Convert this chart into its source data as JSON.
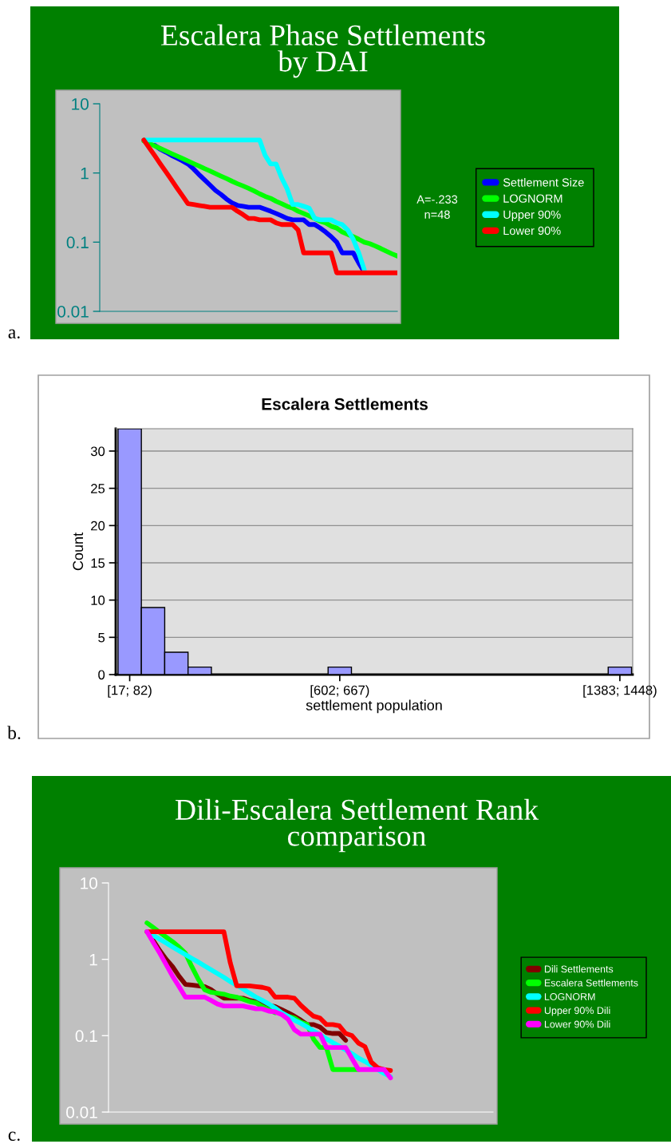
{
  "chart_data": [
    {
      "type": "line",
      "title": "Escalera Phase Settlements\nby DAI",
      "log": "y",
      "ylim": [
        0.01,
        10
      ],
      "yticks": [
        0.01,
        0.1,
        1,
        10
      ],
      "tick_labels": "y",
      "legend": "right",
      "categories": [
        null,
        null,
        null,
        null,
        null,
        null,
        null,
        null,
        null,
        null,
        null,
        null,
        null,
        null,
        null,
        null,
        null,
        null,
        null,
        null,
        null,
        null,
        null,
        null,
        null,
        null,
        null,
        null,
        null,
        null,
        null,
        null,
        null,
        null,
        null,
        null,
        null,
        null,
        null,
        null,
        null,
        null,
        null,
        null,
        null,
        null,
        null,
        null,
        null,
        null,
        null,
        null,
        null,
        null,
        null
      ],
      "series": [
        {
          "name": "Settlement Size",
          "color": "#0000ff",
          "values": [
            null,
            null,
            null,
            null,
            null,
            null,
            null,
            null,
            null,
            null,
            2.5,
            2.2,
            2.0,
            1.8,
            1.65,
            1.5,
            1.35,
            1.15,
            0.95,
            0.8,
            0.67,
            0.56,
            0.49,
            0.42,
            0.37,
            0.34,
            0.33,
            0.32,
            0.32,
            0.32,
            0.3,
            0.28,
            0.26,
            0.24,
            0.22,
            0.21,
            0.21,
            0.21,
            0.18,
            0.18,
            0.16,
            0.14,
            0.12,
            0.1,
            0.07,
            0.07,
            0.07,
            0.05,
            0.037,
            null,
            null,
            null,
            null,
            null,
            null
          ]
        },
        {
          "name": "LOGNORM",
          "color": "#00ff00",
          "values": [
            null,
            null,
            null,
            null,
            null,
            null,
            null,
            null,
            2.9,
            2.67,
            2.45,
            2.26,
            2.08,
            1.91,
            1.76,
            1.62,
            1.49,
            1.37,
            1.26,
            1.16,
            1.07,
            0.98,
            0.9,
            0.83,
            0.76,
            0.7,
            0.65,
            0.6,
            0.55,
            0.5,
            0.46,
            0.43,
            0.39,
            0.36,
            0.33,
            0.31,
            0.28,
            0.26,
            0.24,
            0.22,
            0.2,
            0.19,
            0.17,
            0.16,
            0.14,
            0.13,
            0.12,
            0.11,
            0.1,
            0.095,
            0.088,
            0.081,
            0.074,
            0.068,
            0.063
          ]
        },
        {
          "name": "Upper 90%",
          "color": "#00ffff",
          "values": [
            null,
            null,
            null,
            null,
            null,
            null,
            null,
            null,
            3,
            3,
            3,
            3,
            3,
            3,
            3,
            3,
            3,
            3,
            3,
            3,
            3,
            3,
            3,
            3,
            3,
            3,
            3,
            3,
            3,
            3,
            1.8,
            1.35,
            1.35,
            0.85,
            0.59,
            0.35,
            0.35,
            0.33,
            0.31,
            0.22,
            0.21,
            0.21,
            0.21,
            0.19,
            0.18,
            0.15,
            0.11,
            0.07,
            0.04,
            null,
            null,
            null,
            null,
            null,
            null
          ]
        },
        {
          "name": "Lower 90%",
          "color": "#ff0000",
          "values": [
            null,
            null,
            null,
            null,
            null,
            null,
            null,
            null,
            3,
            2.3,
            1.77,
            1.35,
            1.04,
            0.8,
            0.61,
            0.47,
            0.36,
            0.35,
            0.34,
            0.33,
            0.32,
            0.32,
            0.32,
            0.32,
            0.32,
            0.28,
            0.25,
            0.22,
            0.22,
            0.21,
            0.21,
            0.21,
            0.19,
            0.18,
            0.18,
            0.18,
            0.15,
            0.07,
            0.07,
            0.07,
            0.07,
            0.07,
            0.07,
            0.036,
            0.036,
            0.036,
            0.036,
            0.036,
            0.036,
            0.036,
            0.036,
            0.036,
            0.036,
            0.036,
            0.036
          ]
        }
      ],
      "annotations": [
        "A=-.233",
        "n=48",
        "a."
      ]
    },
    {
      "type": "bar",
      "title": "Escalera Settlements",
      "xlabel": "settlement population",
      "ylabel": "Count",
      "ylim": [
        0,
        33
      ],
      "yticks": [
        0,
        5,
        10,
        15,
        20,
        25,
        30
      ],
      "grid": "y",
      "categories": [
        "[17; 82)",
        null,
        null,
        null,
        null,
        null,
        null,
        null,
        null,
        "[602; 667)",
        null,
        null,
        null,
        null,
        null,
        null,
        null,
        null,
        null,
        null,
        null,
        "[1383; 1448)"
      ],
      "color": "#9999ff",
      "values": [
        33,
        9,
        3,
        1,
        0,
        0,
        0,
        0,
        0,
        1,
        0,
        0,
        0,
        0,
        0,
        0,
        0,
        0,
        0,
        0,
        0,
        1
      ],
      "annotations": [
        "b."
      ]
    },
    {
      "type": "line",
      "title": "Dili-Escalera Settlement Rank\ncomparison",
      "log": "y",
      "ylim": [
        0.01,
        10
      ],
      "yticks": [
        0.01,
        0.1,
        1,
        10
      ],
      "tick_labels": "y",
      "legend": "right",
      "categories": [
        null,
        null,
        null,
        null,
        null,
        null,
        null,
        null,
        null,
        null,
        null,
        null,
        null,
        null,
        null,
        null,
        null,
        null,
        null,
        null,
        null,
        null,
        null,
        null,
        null,
        null,
        null,
        null,
        null,
        null,
        null,
        null,
        null,
        null,
        null,
        null,
        null,
        null,
        null,
        null,
        null,
        null,
        null,
        null,
        null,
        null,
        null,
        null,
        null,
        null,
        null,
        null,
        null,
        null,
        null,
        null,
        null,
        null,
        null,
        null,
        null
      ],
      "series": [
        {
          "name": "Dili Settlements",
          "color": "#800000",
          "values": [
            null,
            null,
            null,
            null,
            null,
            null,
            null,
            1.75,
            1.3,
            1.0,
            0.8,
            0.6,
            0.47,
            0.46,
            0.45,
            0.44,
            0.4,
            0.35,
            0.31,
            0.31,
            0.31,
            0.31,
            0.29,
            0.28,
            0.26,
            0.25,
            0.24,
            0.22,
            0.2,
            0.18,
            0.16,
            0.14,
            0.14,
            0.13,
            0.11,
            0.107,
            0.107,
            0.087,
            null,
            null,
            null,
            null,
            null,
            null,
            null,
            null,
            null,
            null,
            null,
            null,
            null,
            null,
            null,
            null,
            null,
            null,
            null,
            null,
            null,
            null,
            null
          ]
        },
        {
          "name": "Escalera Settlements",
          "color": "#00ff00",
          "values": [
            null,
            null,
            null,
            null,
            null,
            null,
            3.0,
            2.6,
            2.25,
            1.95,
            1.7,
            1.45,
            1.2,
            0.8,
            0.55,
            0.4,
            0.37,
            0.36,
            0.35,
            0.33,
            0.32,
            0.3,
            0.28,
            0.27,
            0.24,
            0.22,
            0.2,
            null,
            0.18,
            0.17,
            0.15,
            0.14,
            0.09,
            0.07,
            0.07,
            0.036,
            0.036,
            0.036,
            0.036,
            0.036,
            null,
            null,
            null,
            null,
            null,
            null,
            null,
            null,
            null,
            null,
            null,
            null,
            null,
            null,
            null,
            null,
            null,
            null,
            null,
            null,
            null
          ]
        },
        {
          "name": "LOGNORM",
          "color": "#00ffff",
          "values": [
            null,
            null,
            null,
            null,
            null,
            null,
            2.3,
            2.05,
            1.83,
            1.63,
            1.45,
            1.29,
            1.15,
            1.03,
            0.92,
            0.82,
            0.73,
            0.65,
            0.58,
            0.51,
            0.46,
            0.41,
            0.36,
            0.32,
            0.29,
            0.26,
            0.23,
            0.2,
            0.18,
            0.16,
            0.145,
            0.13,
            0.115,
            0.103,
            0.091,
            0.081,
            0.073,
            0.065,
            0.058,
            0.051,
            0.046,
            0.041,
            0.036,
            0.032,
            0.029,
            null,
            null,
            null,
            null,
            null,
            null,
            null,
            null,
            null,
            null,
            null,
            null,
            null,
            null,
            null,
            null
          ]
        },
        {
          "name": "Upper 90% Dili",
          "color": "#ff0000",
          "values": [
            null,
            null,
            null,
            null,
            null,
            null,
            2.3,
            2.3,
            2.3,
            2.3,
            2.3,
            2.3,
            2.3,
            2.3,
            2.3,
            2.3,
            2.3,
            2.3,
            2.3,
            0.9,
            0.45,
            0.45,
            0.45,
            0.44,
            0.43,
            0.41,
            0.32,
            0.32,
            0.32,
            0.31,
            0.25,
            0.21,
            0.18,
            0.17,
            0.14,
            0.14,
            0.135,
            0.107,
            0.1,
            0.08,
            0.072,
            0.045,
            0.038,
            0.036,
            0.035,
            null,
            null,
            null,
            null,
            null,
            null,
            null,
            null,
            null,
            null,
            null,
            null,
            null,
            null,
            null,
            null
          ]
        },
        {
          "name": "Lower 90% Dili",
          "color": "#ff00ff",
          "values": [
            null,
            null,
            null,
            null,
            null,
            null,
            2.3,
            1.65,
            1.2,
            0.85,
            0.6,
            0.44,
            0.32,
            0.32,
            0.32,
            0.32,
            0.29,
            0.26,
            0.245,
            0.245,
            0.245,
            0.245,
            0.235,
            0.225,
            0.225,
            0.21,
            0.205,
            0.19,
            0.165,
            0.12,
            0.105,
            0.105,
            0.105,
            0.105,
            0.07,
            0.07,
            0.07,
            0.07,
            0.05,
            0.036,
            0.036,
            0.036,
            0.036,
            0.036,
            0.028,
            null,
            null,
            null,
            null,
            null,
            null,
            null,
            null,
            null,
            null,
            null,
            null,
            null,
            null,
            null,
            null
          ]
        }
      ],
      "annotations": [
        "c."
      ]
    }
  ]
}
